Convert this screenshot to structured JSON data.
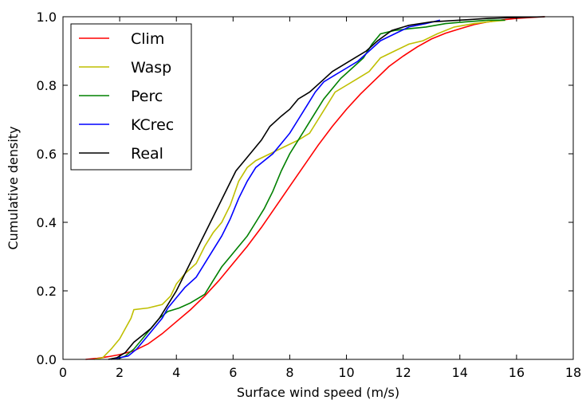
{
  "chart_data": {
    "type": "line",
    "xlabel": "Surface wind speed (m/s)",
    "ylabel": "Cumulative density",
    "xlim": [
      0,
      18
    ],
    "ylim": [
      0,
      1
    ],
    "x_ticks": [
      "0",
      "2",
      "4",
      "6",
      "8",
      "10",
      "12",
      "14",
      "16",
      "18"
    ],
    "y_ticks": [
      "0.0",
      "0.2",
      "0.4",
      "0.6",
      "0.8",
      "1.0"
    ],
    "grid": false,
    "legend_position": "top-left",
    "series": [
      {
        "name": "Clim",
        "color": "#ff0000",
        "points": [
          [
            0.8,
            0
          ],
          [
            1.2,
            0.003
          ],
          [
            1.6,
            0.008
          ],
          [
            2,
            0.014
          ],
          [
            2.5,
            0.025
          ],
          [
            3,
            0.045
          ],
          [
            3.5,
            0.075
          ],
          [
            4,
            0.11
          ],
          [
            4.5,
            0.145
          ],
          [
            5,
            0.185
          ],
          [
            5.5,
            0.23
          ],
          [
            6,
            0.28
          ],
          [
            6.5,
            0.33
          ],
          [
            7,
            0.385
          ],
          [
            7.5,
            0.445
          ],
          [
            8,
            0.505
          ],
          [
            8.5,
            0.565
          ],
          [
            9,
            0.625
          ],
          [
            9.5,
            0.68
          ],
          [
            10,
            0.73
          ],
          [
            10.5,
            0.775
          ],
          [
            11,
            0.815
          ],
          [
            11.5,
            0.855
          ],
          [
            12,
            0.885
          ],
          [
            12.5,
            0.912
          ],
          [
            13,
            0.935
          ],
          [
            13.5,
            0.952
          ],
          [
            14,
            0.965
          ],
          [
            14.5,
            0.977
          ],
          [
            15,
            0.985
          ],
          [
            15.5,
            0.991
          ],
          [
            16,
            0.995
          ],
          [
            16.5,
            0.998
          ],
          [
            17,
            1.0
          ]
        ]
      },
      {
        "name": "Wasp",
        "color": "#bfbf00",
        "points": [
          [
            1.1,
            0
          ],
          [
            1.4,
            0.005
          ],
          [
            1.7,
            0.03
          ],
          [
            2.0,
            0.06
          ],
          [
            2.2,
            0.09
          ],
          [
            2.4,
            0.12
          ],
          [
            2.5,
            0.145
          ],
          [
            3.0,
            0.15
          ],
          [
            3.5,
            0.16
          ],
          [
            3.8,
            0.185
          ],
          [
            4.0,
            0.22
          ],
          [
            4.3,
            0.25
          ],
          [
            4.7,
            0.28
          ],
          [
            5.0,
            0.33
          ],
          [
            5.3,
            0.37
          ],
          [
            5.6,
            0.4
          ],
          [
            5.9,
            0.45
          ],
          [
            6.2,
            0.52
          ],
          [
            6.5,
            0.56
          ],
          [
            6.8,
            0.58
          ],
          [
            7.3,
            0.6
          ],
          [
            7.8,
            0.62
          ],
          [
            8.3,
            0.64
          ],
          [
            8.7,
            0.66
          ],
          [
            9.0,
            0.7
          ],
          [
            9.3,
            0.74
          ],
          [
            9.6,
            0.78
          ],
          [
            10.0,
            0.8
          ],
          [
            10.4,
            0.82
          ],
          [
            10.8,
            0.84
          ],
          [
            11.2,
            0.88
          ],
          [
            11.7,
            0.9
          ],
          [
            12.2,
            0.92
          ],
          [
            12.7,
            0.93
          ],
          [
            13.2,
            0.95
          ],
          [
            13.8,
            0.97
          ],
          [
            14.5,
            0.98
          ],
          [
            15.0,
            0.985
          ],
          [
            15.6,
            0.99
          ]
        ]
      },
      {
        "name": "Perc",
        "color": "#008000",
        "points": [
          [
            1.9,
            0
          ],
          [
            2.2,
            0.01
          ],
          [
            2.5,
            0.03
          ],
          [
            2.8,
            0.06
          ],
          [
            3.1,
            0.09
          ],
          [
            3.4,
            0.12
          ],
          [
            3.7,
            0.14
          ],
          [
            4.1,
            0.15
          ],
          [
            4.5,
            0.165
          ],
          [
            5.0,
            0.19
          ],
          [
            5.3,
            0.23
          ],
          [
            5.6,
            0.27
          ],
          [
            5.9,
            0.3
          ],
          [
            6.2,
            0.33
          ],
          [
            6.5,
            0.36
          ],
          [
            6.8,
            0.4
          ],
          [
            7.1,
            0.44
          ],
          [
            7.4,
            0.49
          ],
          [
            7.7,
            0.55
          ],
          [
            8.0,
            0.6
          ],
          [
            8.3,
            0.64
          ],
          [
            8.6,
            0.68
          ],
          [
            8.9,
            0.72
          ],
          [
            9.2,
            0.76
          ],
          [
            9.5,
            0.79
          ],
          [
            9.8,
            0.82
          ],
          [
            10.2,
            0.85
          ],
          [
            10.6,
            0.88
          ],
          [
            10.9,
            0.92
          ],
          [
            11.2,
            0.95
          ],
          [
            11.7,
            0.96
          ],
          [
            12.2,
            0.965
          ],
          [
            12.8,
            0.97
          ],
          [
            13.5,
            0.98
          ],
          [
            14.2,
            0.985
          ],
          [
            15.0,
            0.99
          ],
          [
            15.6,
            0.99
          ]
        ]
      },
      {
        "name": "KCrec",
        "color": "#0000ff",
        "points": [
          [
            1.7,
            0
          ],
          [
            2.0,
            0.005
          ],
          [
            2.3,
            0.01
          ],
          [
            2.6,
            0.03
          ],
          [
            2.9,
            0.06
          ],
          [
            3.2,
            0.09
          ],
          [
            3.5,
            0.12
          ],
          [
            3.7,
            0.15
          ],
          [
            4.0,
            0.18
          ],
          [
            4.3,
            0.21
          ],
          [
            4.7,
            0.24
          ],
          [
            5.0,
            0.28
          ],
          [
            5.3,
            0.32
          ],
          [
            5.6,
            0.36
          ],
          [
            5.9,
            0.41
          ],
          [
            6.2,
            0.47
          ],
          [
            6.5,
            0.52
          ],
          [
            6.8,
            0.56
          ],
          [
            7.1,
            0.58
          ],
          [
            7.4,
            0.6
          ],
          [
            7.7,
            0.63
          ],
          [
            8.0,
            0.66
          ],
          [
            8.3,
            0.7
          ],
          [
            8.6,
            0.74
          ],
          [
            8.9,
            0.78
          ],
          [
            9.2,
            0.81
          ],
          [
            9.6,
            0.83
          ],
          [
            10.0,
            0.85
          ],
          [
            10.4,
            0.87
          ],
          [
            10.8,
            0.9
          ],
          [
            11.2,
            0.93
          ],
          [
            11.7,
            0.95
          ],
          [
            12.2,
            0.97
          ],
          [
            12.8,
            0.98
          ],
          [
            13.3,
            0.99
          ]
        ]
      },
      {
        "name": "Real",
        "color": "#000000",
        "points": [
          [
            1.6,
            0
          ],
          [
            1.9,
            0.005
          ],
          [
            2.2,
            0.02
          ],
          [
            2.5,
            0.05
          ],
          [
            2.8,
            0.07
          ],
          [
            3.1,
            0.09
          ],
          [
            3.4,
            0.12
          ],
          [
            3.7,
            0.16
          ],
          [
            4.0,
            0.2
          ],
          [
            4.3,
            0.25
          ],
          [
            4.6,
            0.3
          ],
          [
            4.9,
            0.35
          ],
          [
            5.2,
            0.4
          ],
          [
            5.5,
            0.45
          ],
          [
            5.8,
            0.5
          ],
          [
            6.1,
            0.55
          ],
          [
            6.4,
            0.58
          ],
          [
            6.7,
            0.61
          ],
          [
            7.0,
            0.64
          ],
          [
            7.3,
            0.68
          ],
          [
            7.7,
            0.71
          ],
          [
            8.0,
            0.73
          ],
          [
            8.3,
            0.76
          ],
          [
            8.7,
            0.78
          ],
          [
            9.1,
            0.81
          ],
          [
            9.5,
            0.84
          ],
          [
            9.9,
            0.86
          ],
          [
            10.3,
            0.88
          ],
          [
            10.7,
            0.9
          ],
          [
            11.1,
            0.93
          ],
          [
            11.6,
            0.96
          ],
          [
            12.2,
            0.975
          ],
          [
            13.0,
            0.985
          ],
          [
            14.0,
            0.99
          ],
          [
            15.0,
            0.995
          ],
          [
            16.0,
            0.998
          ],
          [
            17.0,
            1.0
          ]
        ]
      }
    ]
  }
}
